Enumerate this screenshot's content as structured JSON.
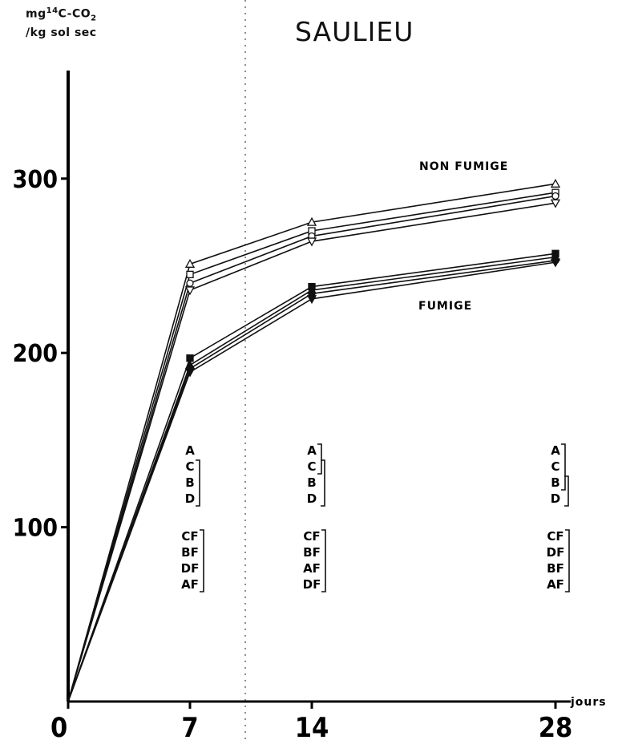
{
  "chart_data": {
    "type": "line",
    "title": "SAULIEU",
    "ylabel_line1_prefix": "mg",
    "ylabel_line1_sup": "14",
    "ylabel_line1_mid": "C-CO",
    "ylabel_line1_sub": "2",
    "ylabel_line2": "/kg sol sec",
    "xlabel": "jours",
    "x": [
      0,
      7,
      14,
      28
    ],
    "x_ticks": [
      "0",
      "7",
      "14",
      "28"
    ],
    "y_ticks": [
      "100",
      "200",
      "300"
    ],
    "xlim": [
      0,
      28
    ],
    "ylim": [
      0,
      362
    ],
    "series": [
      {
        "values": [
          0,
          251,
          275,
          297
        ],
        "marker": "triangle-up",
        "filled": false,
        "group": "non_fumige"
      },
      {
        "values": [
          0,
          245,
          270,
          292
        ],
        "marker": "square",
        "filled": false,
        "group": "non_fumige"
      },
      {
        "values": [
          0,
          240,
          267,
          290
        ],
        "marker": "circle",
        "filled": false,
        "group": "non_fumige"
      },
      {
        "values": [
          0,
          236,
          264,
          286
        ],
        "marker": "triangle-down",
        "filled": false,
        "group": "non_fumige"
      },
      {
        "values": [
          0,
          197,
          238,
          257
        ],
        "marker": "square",
        "filled": true,
        "group": "fumige"
      },
      {
        "values": [
          0,
          193,
          236,
          255
        ],
        "marker": "triangle-up",
        "filled": true,
        "group": "fumige"
      },
      {
        "values": [
          0,
          191,
          234,
          253
        ],
        "marker": "circle",
        "filled": true,
        "group": "fumige"
      },
      {
        "values": [
          0,
          189,
          231,
          252
        ],
        "marker": "triangle-down",
        "filled": true,
        "group": "fumige"
      }
    ],
    "annotations": {
      "non_fumige": "NON FUMIGE",
      "fumige": "FUMIGE"
    },
    "groupings": [
      {
        "day": 7,
        "non_fumige": [
          "A",
          "C",
          "B",
          "D"
        ],
        "fumige": [
          "CF",
          "BF",
          "DF",
          "AF"
        ]
      },
      {
        "day": 14,
        "non_fumige": [
          "A",
          "C",
          "B",
          "D"
        ],
        "fumige": [
          "CF",
          "BF",
          "AF",
          "DF"
        ]
      },
      {
        "day": 28,
        "non_fumige": [
          "A",
          "C",
          "B",
          "D"
        ],
        "fumige": [
          "CF",
          "DF",
          "BF",
          "AF"
        ]
      }
    ]
  }
}
